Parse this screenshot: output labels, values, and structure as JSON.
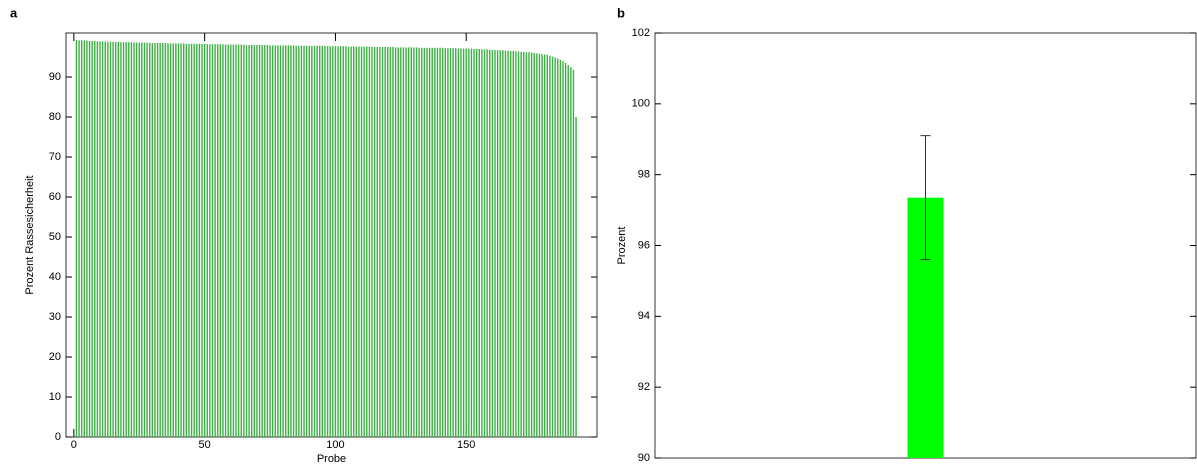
{
  "chart_data": [
    {
      "type": "bar",
      "label": "a",
      "xlabel": "Probe",
      "ylabel": "Prozent Rassesicherheit",
      "color": "#3cb043",
      "xlim": [
        -3,
        200
      ],
      "xticks": [
        0,
        50,
        100,
        150
      ],
      "ylim": [
        0,
        101
      ],
      "yticks": [
        0,
        10,
        20,
        30,
        40,
        50,
        60,
        70,
        80,
        90
      ],
      "x": [
        1,
        2,
        3,
        4,
        5,
        6,
        7,
        8,
        9,
        10,
        11,
        12,
        13,
        14,
        15,
        16,
        17,
        18,
        19,
        20,
        21,
        22,
        23,
        24,
        25,
        26,
        27,
        28,
        29,
        30,
        31,
        32,
        33,
        34,
        35,
        36,
        37,
        38,
        39,
        40,
        41,
        42,
        43,
        44,
        45,
        46,
        47,
        48,
        49,
        50,
        51,
        52,
        53,
        54,
        55,
        56,
        57,
        58,
        59,
        60,
        61,
        62,
        63,
        64,
        65,
        66,
        67,
        68,
        69,
        70,
        71,
        72,
        73,
        74,
        75,
        76,
        77,
        78,
        79,
        80,
        81,
        82,
        83,
        84,
        85,
        86,
        87,
        88,
        89,
        90,
        91,
        92,
        93,
        94,
        95,
        96,
        97,
        98,
        99,
        100,
        101,
        102,
        103,
        104,
        105,
        106,
        107,
        108,
        109,
        110,
        111,
        112,
        113,
        114,
        115,
        116,
        117,
        118,
        119,
        120,
        121,
        122,
        123,
        124,
        125,
        126,
        127,
        128,
        129,
        130,
        131,
        132,
        133,
        134,
        135,
        136,
        137,
        138,
        139,
        140,
        141,
        142,
        143,
        144,
        145,
        146,
        147,
        148,
        149,
        150,
        151,
        152,
        153,
        154,
        155,
        156,
        157,
        158,
        159,
        160,
        161,
        162,
        163,
        164,
        165,
        166,
        167,
        168,
        169,
        170,
        171,
        172,
        173,
        174,
        175,
        176,
        177,
        178,
        179,
        180,
        181,
        182,
        183,
        184,
        185,
        186,
        187,
        188,
        189,
        190,
        191,
        192
      ],
      "values": [
        99.3,
        99.2,
        99.2,
        99.1,
        99.1,
        99.0,
        99.0,
        99.0,
        98.9,
        98.9,
        98.9,
        98.9,
        98.8,
        98.8,
        98.8,
        98.8,
        98.8,
        98.7,
        98.7,
        98.7,
        98.7,
        98.7,
        98.6,
        98.6,
        98.6,
        98.6,
        98.6,
        98.6,
        98.5,
        98.5,
        98.5,
        98.5,
        98.5,
        98.5,
        98.5,
        98.4,
        98.4,
        98.4,
        98.4,
        98.4,
        98.4,
        98.4,
        98.3,
        98.3,
        98.3,
        98.3,
        98.3,
        98.3,
        98.3,
        98.3,
        98.2,
        98.2,
        98.2,
        98.2,
        98.2,
        98.2,
        98.2,
        98.1,
        98.1,
        98.1,
        98.1,
        98.1,
        98.1,
        98.1,
        98.1,
        98.0,
        98.0,
        98.0,
        98.0,
        98.0,
        98.0,
        98.0,
        98.0,
        98.0,
        97.9,
        97.9,
        97.9,
        97.9,
        97.9,
        97.9,
        97.9,
        97.9,
        97.9,
        97.9,
        97.8,
        97.8,
        97.8,
        97.8,
        97.8,
        97.8,
        97.8,
        97.8,
        97.8,
        97.8,
        97.8,
        97.8,
        97.7,
        97.7,
        97.7,
        97.7,
        97.7,
        97.7,
        97.7,
        97.7,
        97.6,
        97.6,
        97.6,
        97.6,
        97.6,
        97.6,
        97.6,
        97.6,
        97.6,
        97.5,
        97.5,
        97.5,
        97.5,
        97.5,
        97.5,
        97.5,
        97.5,
        97.5,
        97.4,
        97.4,
        97.4,
        97.4,
        97.4,
        97.4,
        97.4,
        97.4,
        97.4,
        97.3,
        97.3,
        97.3,
        97.3,
        97.3,
        97.3,
        97.3,
        97.3,
        97.3,
        97.3,
        97.2,
        97.2,
        97.2,
        97.2,
        97.2,
        97.1,
        97.1,
        97.1,
        97.1,
        97.1,
        97.1,
        97.0,
        97.0,
        97.0,
        96.9,
        96.9,
        96.9,
        96.8,
        96.8,
        96.8,
        96.7,
        96.7,
        96.7,
        96.6,
        96.6,
        96.5,
        96.5,
        96.4,
        96.4,
        96.3,
        96.3,
        96.2,
        96.2,
        96.1,
        96.0,
        95.9,
        95.8,
        95.7,
        95.6,
        95.5,
        95.3,
        95.1,
        94.9,
        94.6,
        94.3,
        94.0,
        93.5,
        93.0,
        92.4,
        91.8,
        80.0
      ]
    },
    {
      "type": "errorbar",
      "label": "b",
      "ylabel": "Prozent",
      "color": "#00ff00",
      "categories": [
        null
      ],
      "values": [
        97.35
      ],
      "errors": [
        1.75
      ],
      "ylim": [
        90,
        102
      ],
      "yticks": [
        90,
        92,
        94,
        96,
        98,
        100,
        102
      ]
    }
  ]
}
